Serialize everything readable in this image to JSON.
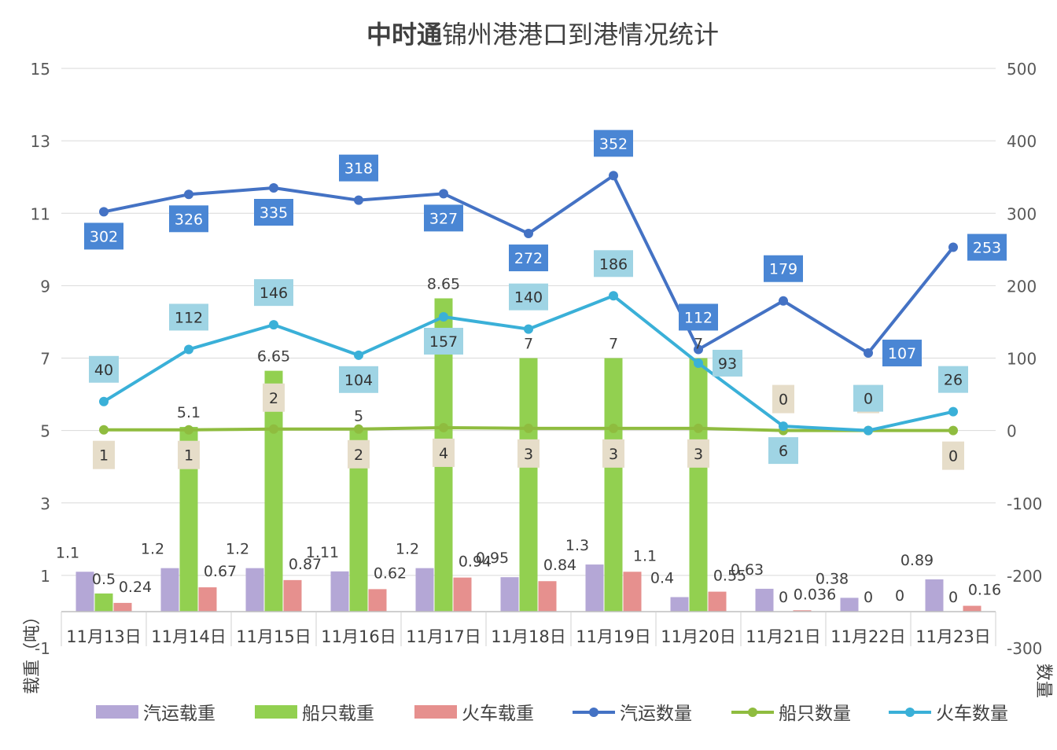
{
  "chart_data": {
    "type": "bar",
    "title_bold": "中时通",
    "title_rest": "锦州港港口到港情况统计",
    "left_axis_label": "载重（吨）",
    "right_axis_label": "数量",
    "left_ylim": [
      -1,
      15
    ],
    "left_ticks": [
      "15",
      "13",
      "11",
      "9",
      "7",
      "5",
      "3",
      "1",
      "-1"
    ],
    "right_ylim": [
      -300,
      500
    ],
    "right_ticks": [
      "500",
      "400",
      "300",
      "200",
      "100",
      "0",
      "-100",
      "-200",
      "-300"
    ],
    "categories": [
      "11月13日",
      "11月14日",
      "11月15日",
      "11月16日",
      "11月17日",
      "11月18日",
      "11月19日",
      "11月20日",
      "11月21日",
      "11月22日",
      "11月23日"
    ],
    "bar_series": [
      {
        "name": "汽运载重",
        "color": "#b4a7d6",
        "values": [
          1.1,
          1.2,
          1.2,
          1.11,
          1.2,
          0.95,
          1.3,
          0.4,
          0.63,
          0.38,
          0.89
        ],
        "labels": [
          "1.1",
          "1.2",
          "1.2",
          "1.11",
          "1.2",
          "0.95",
          "1.3",
          "0.4",
          "0.63",
          "0.38",
          "0.89"
        ]
      },
      {
        "name": "船只载重",
        "color": "#92d050",
        "values": [
          0.5,
          5.1,
          6.65,
          5,
          8.65,
          7,
          7,
          7,
          0,
          0,
          0
        ],
        "labels": [
          "0.5",
          "5.1",
          "6.65",
          "5",
          "8.65",
          "7",
          "7",
          "7",
          "0",
          "0",
          "0"
        ]
      },
      {
        "name": "火车载重",
        "color": "#e6908e",
        "values": [
          0.24,
          0.67,
          0.87,
          0.62,
          0.94,
          0.84,
          1.1,
          0.55,
          0.036,
          0,
          0.16
        ],
        "labels": [
          "0.24",
          "0.67",
          "0.87",
          "0.62",
          "0.94",
          "0.84",
          "1.1",
          "0.55",
          "0.036",
          "0",
          "0.16"
        ]
      }
    ],
    "line_series": [
      {
        "name": "汽运数量",
        "color": "#4472c4",
        "label_bg": "#4a86d4",
        "label_fg": "#ffffff",
        "values": [
          302,
          326,
          335,
          318,
          327,
          272,
          352,
          112,
          179,
          107,
          253
        ],
        "labels": [
          "302",
          "326",
          "335",
          "318",
          "327",
          "272",
          "352",
          "112",
          "179",
          "107",
          "253"
        ]
      },
      {
        "name": "船只数量",
        "color": "#8fbc3f",
        "label_bg": "#e6ddc9",
        "label_fg": "#333333",
        "values": [
          1,
          1,
          2,
          2,
          4,
          3,
          3,
          3,
          0,
          0,
          0
        ],
        "labels": [
          "1",
          "1",
          "2",
          "2",
          "4",
          "3",
          "3",
          "3",
          "0",
          "0",
          "0"
        ]
      },
      {
        "name": "火车数量",
        "color": "#3ab0d8",
        "label_bg": "#9fd4e4",
        "label_fg": "#333333",
        "values": [
          40,
          112,
          146,
          104,
          157,
          140,
          186,
          93,
          6,
          0,
          26
        ],
        "labels": [
          "40",
          "112",
          "146",
          "104",
          "157",
          "140",
          "186",
          "93",
          "6",
          "0",
          "26"
        ]
      }
    ],
    "legend": [
      "汽运载重",
      "船只载重",
      "火车载重",
      "汽运数量",
      "船只数量",
      "火车数量"
    ],
    "legend_position": "bottom",
    "grid": true
  }
}
